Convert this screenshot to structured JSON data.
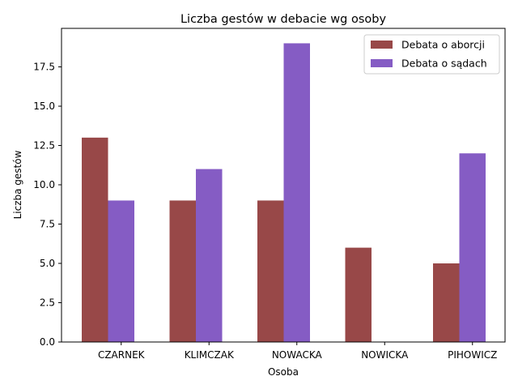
{
  "chart_data": {
    "type": "bar",
    "title": "Liczba gestów w debacie wg osoby",
    "xlabel": "Osoba",
    "ylabel": "Liczba gestów",
    "categories": [
      "CZARNEK",
      "KLIMCZAK",
      "NOWACKA",
      "NOWICKA",
      "PIHOWICZ"
    ],
    "series": [
      {
        "name": "Debata o aborcji",
        "values": [
          13,
          9,
          9,
          6,
          5
        ],
        "color": "#984848"
      },
      {
        "name": "Debata o sądach",
        "values": [
          9,
          11,
          19,
          0,
          12
        ],
        "color": "#855cc4"
      }
    ],
    "ylim": [
      0,
      19.95
    ],
    "yticks": [
      "0.0",
      "2.5",
      "5.0",
      "7.5",
      "10.0",
      "12.5",
      "15.0",
      "17.5"
    ],
    "grid": false,
    "legend_position": "top-right"
  }
}
